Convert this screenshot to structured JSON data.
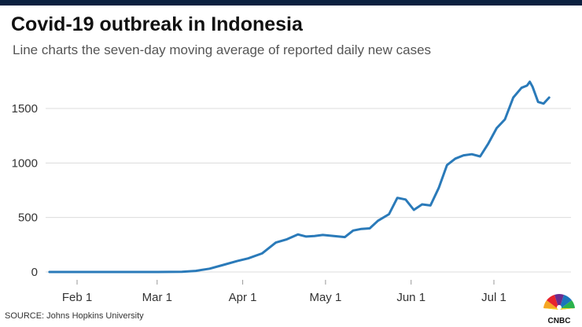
{
  "header": {
    "title": "Covid-19 outbreak in Indonesia",
    "subtitle": "Line charts the seven-day moving average of reported daily new cases"
  },
  "footer": {
    "source": "SOURCE: Johns Hopkins University",
    "logo_text": "CNBC",
    "logo_name": "cnbc-peacock-logo"
  },
  "colors": {
    "line": "#2a7ab9",
    "grid": "#dcdcdc",
    "topbar": "#0b2140"
  },
  "chart_data": {
    "type": "line",
    "title": "Covid-19 outbreak in Indonesia",
    "subtitle": "Line charts the seven-day moving average of reported daily new cases",
    "xlabel": "",
    "ylabel": "",
    "ylim": [
      0,
      1800
    ],
    "xlim": [
      "2020-01-22",
      "2020-07-24"
    ],
    "y_ticks": [
      0,
      500,
      1000,
      1500
    ],
    "y_tick_labels": [
      "0",
      "500",
      "1000",
      "1500"
    ],
    "x_ticks": [
      "2020-02-01",
      "2020-03-01",
      "2020-04-01",
      "2020-05-01",
      "2020-06-01",
      "2020-07-01"
    ],
    "x_tick_labels": [
      "Feb 1",
      "Mar 1",
      "Apr 1",
      "May 1",
      "Jun 1",
      "Jul 1"
    ],
    "grid": "horizontal",
    "legend": "none",
    "series": [
      {
        "x": [
          "2020-01-22",
          "2020-02-10",
          "2020-03-01",
          "2020-03-10",
          "2020-03-15",
          "2020-03-20",
          "2020-03-25",
          "2020-03-30",
          "2020-04-03",
          "2020-04-08",
          "2020-04-13",
          "2020-04-17",
          "2020-04-21",
          "2020-04-24",
          "2020-04-27",
          "2020-04-30",
          "2020-05-04",
          "2020-05-08",
          "2020-05-11",
          "2020-05-14",
          "2020-05-17",
          "2020-05-20",
          "2020-05-24",
          "2020-05-27",
          "2020-05-30",
          "2020-06-02",
          "2020-06-05",
          "2020-06-08",
          "2020-06-11",
          "2020-06-14",
          "2020-06-17",
          "2020-06-20",
          "2020-06-23",
          "2020-06-26",
          "2020-06-29",
          "2020-07-02",
          "2020-07-05",
          "2020-07-08",
          "2020-07-11",
          "2020-07-13",
          "2020-07-14",
          "2020-07-15",
          "2020-07-17",
          "2020-07-19",
          "2020-07-21"
        ],
        "y": [
          0,
          0,
          0,
          2,
          10,
          30,
          65,
          100,
          125,
          170,
          270,
          300,
          345,
          325,
          330,
          340,
          330,
          320,
          380,
          395,
          400,
          470,
          530,
          680,
          665,
          570,
          620,
          610,
          770,
          980,
          1040,
          1070,
          1080,
          1060,
          1180,
          1320,
          1400,
          1600,
          1690,
          1710,
          1745,
          1700,
          1560,
          1545,
          1600
        ]
      }
    ]
  }
}
